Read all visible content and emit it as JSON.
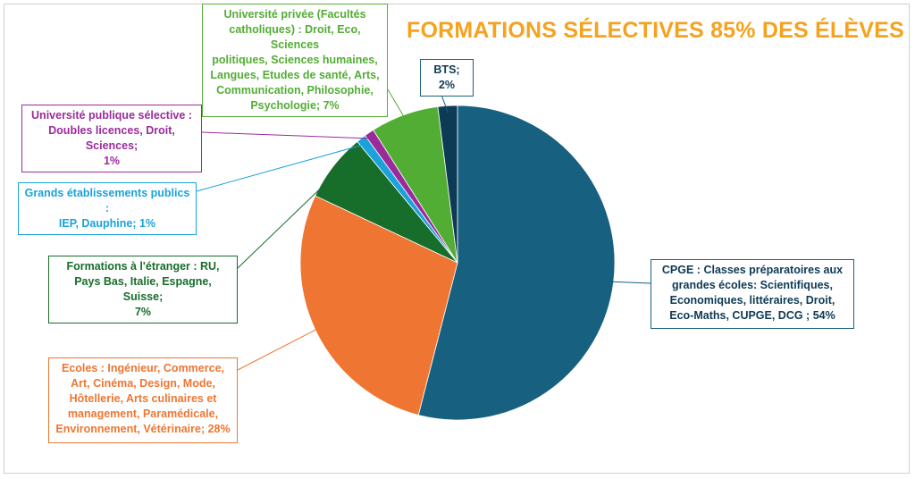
{
  "chart_data": {
    "type": "pie",
    "title": "FORMATIONS SÉLECTIVES 85% DES ÉLÈVES",
    "slices": [
      {
        "lines": [
          "CPGE : Classes préparatoires aux",
          "grandes écoles: Scientifiques,",
          "Economiques, littéraires, Droit,",
          "Eco-Maths, CUPGE, DCG  ; 54%"
        ],
        "value": 54,
        "color": "#17607f"
      },
      {
        "lines": [
          "Ecoles : Ingénieur, Commerce,",
          "Art, Cinéma, Design, Mode,",
          "Hôtellerie, Arts culinaires et",
          "management, Paramédicale,",
          "Environnement, Vétérinaire; 28%"
        ],
        "value": 28,
        "color": "#ee7632"
      },
      {
        "lines": [
          "Formations à l'étranger : RU,",
          "Pays Bas, Italie, Espagne, Suisse;",
          "7%"
        ],
        "value": 7,
        "color": "#176d2a"
      },
      {
        "lines": [
          "Grands établissements publics :",
          "IEP, Dauphine; 1%"
        ],
        "value": 1,
        "color": "#1aa3db"
      },
      {
        "lines": [
          "Université publique sélective :",
          "Doubles licences, Droit, Sciences;",
          "1%"
        ],
        "value": 1,
        "color": "#9b2b9b"
      },
      {
        "lines": [
          "Université privée (Facultés",
          "catholiques) : Droit, Eco, Sciences",
          "politiques, Sciences humaines,",
          "Langues, Etudes de santé, Arts,",
          "Communication, Philosophie,",
          "Psychologie; 7%"
        ],
        "value": 7,
        "color": "#52ad35"
      },
      {
        "lines": [
          "BTS; 2%"
        ],
        "value": 2,
        "color": "#0d3a55"
      }
    ]
  }
}
